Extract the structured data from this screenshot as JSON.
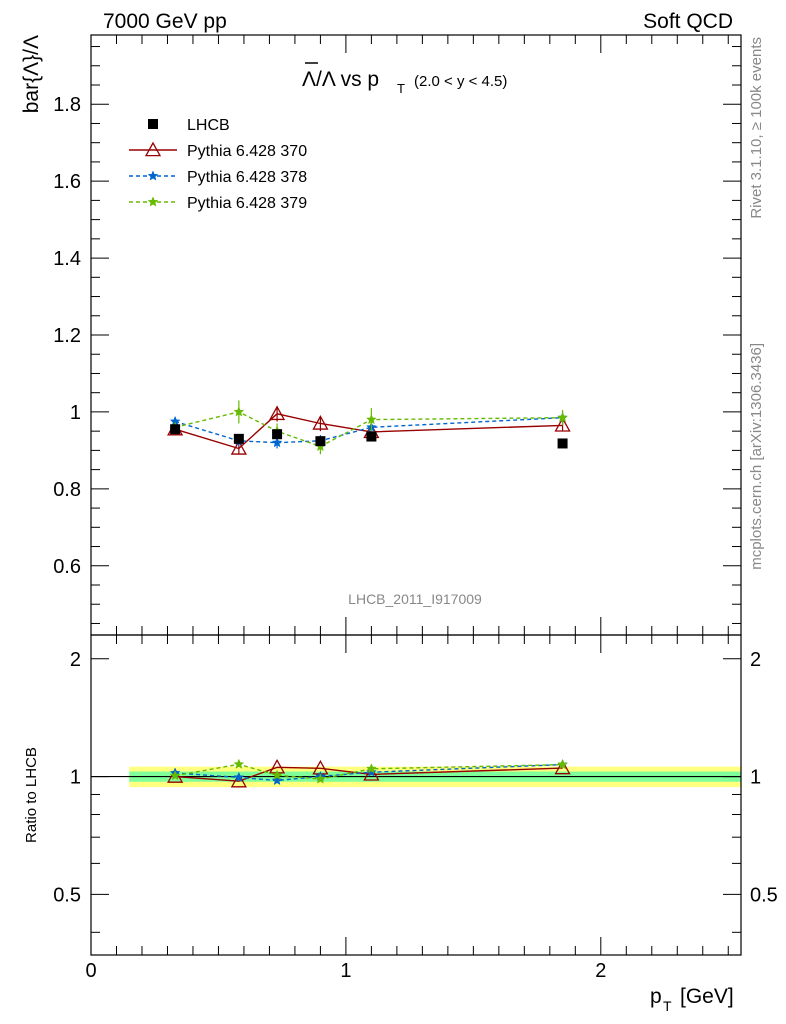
{
  "header": {
    "left": "7000 GeV pp",
    "right": "Soft QCD"
  },
  "side_text": {
    "rivet": "Rivet 3.1.10, ≥ 100k events",
    "mcplots": "mcplots.cern.ch [arXiv:1306.3436]"
  },
  "watermark": "LHCB_2011_I917009",
  "title": {
    "main": "Λ/Λ vs p",
    "sub": "T",
    "range": "(2.0 < y < 4.5)"
  },
  "colors": {
    "data": "#000000",
    "s370": "#990000",
    "s378": "#0066cc",
    "s379": "#66bb00",
    "band_inner": "#7fff99",
    "band_outer": "#ffff80"
  },
  "chart_data": {
    "type": "scatter",
    "xlabel": "p_T [GeV]",
    "xlabel_main": "p",
    "xlabel_sub": "T",
    "xlabel_unit": "[GeV]",
    "ylabel": "bar{Λ}/Λ",
    "ratio_ylabel": "Ratio to LHCB",
    "xlim": [
      0,
      2.55
    ],
    "ylim": [
      0.42,
      1.98
    ],
    "ratio_ylim": [
      0.35,
      2.3
    ],
    "ratio_log": true,
    "x_ticks": [
      "0",
      "1",
      "2"
    ],
    "y_ticks": [
      "0.6",
      "0.8",
      "1",
      "1.2",
      "1.4",
      "1.6",
      "1.8"
    ],
    "ratio_ticks": [
      "0.5",
      "1",
      "2"
    ],
    "band": {
      "x": [
        0.15,
        2.55
      ],
      "inner": [
        0.97,
        1.03
      ],
      "outer": [
        0.94,
        1.06
      ]
    },
    "legend": [
      {
        "key": "data",
        "label": "LHCB"
      },
      {
        "key": "s370",
        "label": "Pythia 6.428 370"
      },
      {
        "key": "s378",
        "label": "Pythia 6.428 378"
      },
      {
        "key": "s379",
        "label": "Pythia 6.428 379"
      }
    ],
    "data": {
      "name": "LHCB",
      "x": [
        0.33,
        0.58,
        0.73,
        0.9,
        1.1,
        1.85
      ],
      "y": [
        0.955,
        0.93,
        0.942,
        0.924,
        0.936,
        0.918
      ]
    },
    "series": [
      {
        "key": "s370",
        "name": "Pythia 6.428 370",
        "x": [
          0.33,
          0.58,
          0.73,
          0.9,
          1.1,
          1.85
        ],
        "y": [
          0.955,
          0.905,
          0.995,
          0.97,
          0.948,
          0.965
        ],
        "err": [
          0.01,
          0.015,
          0.02,
          0.02,
          0.015,
          0.015
        ],
        "ratio": [
          1.0,
          0.973,
          1.056,
          1.05,
          1.013,
          1.051
        ]
      },
      {
        "key": "s378",
        "name": "Pythia 6.428 378",
        "x": [
          0.33,
          0.58,
          0.73,
          0.9,
          1.1,
          1.85
        ],
        "y": [
          0.975,
          0.925,
          0.92,
          0.925,
          0.96,
          0.985
        ],
        "err": [
          0.012,
          0.015,
          0.015,
          0.015,
          0.015,
          0.015
        ],
        "ratio": [
          1.021,
          0.995,
          0.977,
          1.001,
          1.026,
          1.073
        ]
      },
      {
        "key": "s379",
        "name": "Pythia 6.428 379",
        "x": [
          0.33,
          0.58,
          0.73,
          0.9,
          1.1,
          1.85
        ],
        "y": [
          0.96,
          1.0,
          0.95,
          0.91,
          0.98,
          0.985
        ],
        "err": [
          0.012,
          0.03,
          0.02,
          0.02,
          0.03,
          0.02
        ],
        "ratio": [
          1.005,
          1.075,
          1.008,
          0.985,
          1.047,
          1.073
        ]
      }
    ]
  }
}
